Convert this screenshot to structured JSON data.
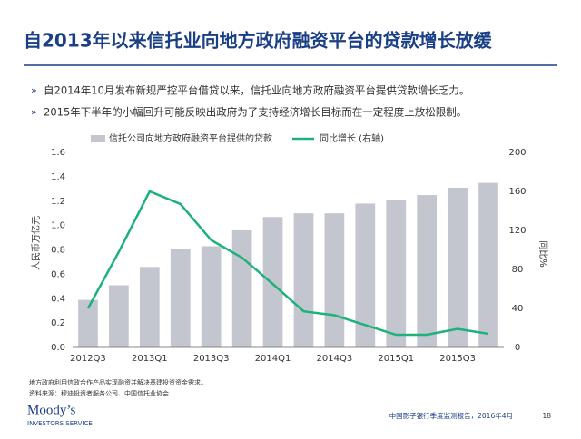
{
  "title": "自2013年以来信托业向地方政府融资平台的贷款增长放缓",
  "bullets": [
    "自2014年10月发布新规严控平台借贷以来，信托业向地方政府融资平台提供贷款增长乏力。",
    "2015年下半年的小幅回升可能反映出政府为了支持经济增长目标而在一定程度上放松限制。"
  ],
  "footnotes": [
    "地方政府利用信政合作产品实现融资并解决基建投资资金需求。",
    "资料来源：穆迪投资者服务公司、中国信托业协会"
  ],
  "logo": {
    "name": "Moody’s",
    "tagline": "INVESTORS SERVICE"
  },
  "footer": {
    "report": "中国影子银行季度监测报告，2016年4月",
    "page": "18"
  },
  "chart_data": {
    "type": "bar-line",
    "categories": [
      "2012Q3",
      null,
      "2013Q1",
      null,
      "2013Q3",
      null,
      "2014Q1",
      null,
      "2014Q3",
      null,
      "2015Q1",
      null,
      "2015Q3",
      null
    ],
    "series": [
      {
        "name": "信托公司向地方政府融资平台提供的贷款",
        "type": "bar",
        "color": "#c3c6ce",
        "values": [
          0.39,
          0.51,
          0.66,
          0.81,
          0.83,
          0.96,
          1.07,
          1.1,
          1.1,
          1.18,
          1.21,
          1.25,
          1.31,
          1.35
        ]
      },
      {
        "name": "同比增长 (右轴)",
        "type": "line",
        "axis": "y2",
        "color": "#1db27a",
        "values": [
          40,
          98,
          160,
          147,
          110,
          92,
          65,
          37,
          33,
          23,
          13,
          13,
          19,
          14
        ]
      }
    ],
    "ylabel": "人民币万亿元",
    "y2label": "同比%",
    "ylim": [
      0,
      1.6
    ],
    "yticks": [
      {
        "value": 0,
        "label": "0.0"
      },
      0.2,
      0.4,
      0.6,
      0.8,
      {
        "value": 1,
        "label": "1.0"
      },
      1.2,
      1.4,
      1.6
    ],
    "y2lim": [
      0,
      200
    ],
    "y2ticks": [
      0,
      40,
      80,
      120,
      160,
      200
    ]
  }
}
